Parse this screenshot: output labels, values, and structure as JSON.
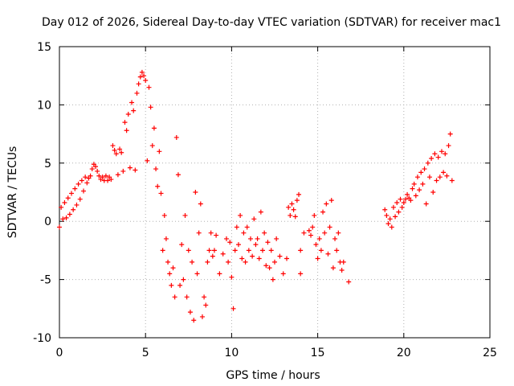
{
  "chart_data": {
    "type": "scatter",
    "title": "Day 012 of 2026, Sidereal Day-to-day VTEC variation (SDTVAR) for receiver mac1",
    "xlabel": "GPS time / hours",
    "ylabel": "SDTVAR / TECUs",
    "xlim": [
      0,
      25
    ],
    "ylim": [
      -10,
      15
    ],
    "xticks": [
      "0",
      "5",
      "10",
      "15",
      "20",
      "25"
    ],
    "yticks": [
      "-10",
      "-5",
      "0",
      "5",
      "10",
      "15"
    ],
    "grid": true,
    "marker": "+",
    "color": "#ff0000",
    "series": [
      {
        "name": "SDTVAR",
        "points": [
          [
            0.0,
            -0.5
          ],
          [
            0.1,
            1.2
          ],
          [
            0.2,
            0.2
          ],
          [
            0.3,
            1.6
          ],
          [
            0.4,
            0.3
          ],
          [
            0.5,
            2.0
          ],
          [
            0.6,
            0.6
          ],
          [
            0.7,
            2.4
          ],
          [
            0.8,
            1.0
          ],
          [
            0.9,
            2.8
          ],
          [
            1.0,
            1.4
          ],
          [
            1.1,
            3.2
          ],
          [
            1.2,
            1.9
          ],
          [
            1.3,
            3.5
          ],
          [
            1.4,
            2.6
          ],
          [
            1.5,
            3.8
          ],
          [
            1.6,
            3.3
          ],
          [
            1.7,
            3.7
          ],
          [
            1.8,
            3.9
          ],
          [
            1.9,
            4.5
          ],
          [
            2.0,
            4.9
          ],
          [
            2.1,
            4.7
          ],
          [
            2.2,
            4.3
          ],
          [
            2.3,
            3.9
          ],
          [
            2.4,
            3.6
          ],
          [
            2.5,
            3.8
          ],
          [
            2.6,
            3.5
          ],
          [
            2.7,
            3.9
          ],
          [
            2.8,
            3.5
          ],
          [
            2.9,
            3.8
          ],
          [
            3.0,
            3.6
          ],
          [
            3.1,
            6.5
          ],
          [
            3.2,
            6.1
          ],
          [
            3.3,
            5.8
          ],
          [
            3.4,
            4.0
          ],
          [
            3.5,
            6.2
          ],
          [
            3.6,
            5.9
          ],
          [
            3.7,
            4.3
          ],
          [
            3.8,
            8.5
          ],
          [
            3.9,
            7.8
          ],
          [
            4.0,
            9.2
          ],
          [
            4.1,
            4.6
          ],
          [
            4.2,
            10.2
          ],
          [
            4.3,
            9.5
          ],
          [
            4.4,
            4.4
          ],
          [
            4.5,
            11.0
          ],
          [
            4.6,
            11.8
          ],
          [
            4.7,
            12.4
          ],
          [
            4.8,
            12.8
          ],
          [
            4.9,
            12.5
          ],
          [
            5.0,
            12.1
          ],
          [
            5.1,
            5.2
          ],
          [
            5.2,
            11.5
          ],
          [
            5.3,
            9.8
          ],
          [
            5.4,
            6.5
          ],
          [
            5.5,
            8.0
          ],
          [
            5.6,
            4.5
          ],
          [
            5.7,
            3.0
          ],
          [
            5.8,
            6.0
          ],
          [
            5.9,
            2.4
          ],
          [
            6.0,
            -2.5
          ],
          [
            6.1,
            0.5
          ],
          [
            6.2,
            -1.5
          ],
          [
            6.3,
            -3.5
          ],
          [
            6.4,
            -4.5
          ],
          [
            6.5,
            -5.5
          ],
          [
            6.6,
            -4.0
          ],
          [
            6.7,
            -6.5
          ],
          [
            6.8,
            7.2
          ],
          [
            6.9,
            4.0
          ],
          [
            7.0,
            -5.5
          ],
          [
            7.1,
            -2.0
          ],
          [
            7.2,
            -5.0
          ],
          [
            7.3,
            0.5
          ],
          [
            7.4,
            -6.5
          ],
          [
            7.5,
            -2.5
          ],
          [
            7.6,
            -7.8
          ],
          [
            7.7,
            -3.5
          ],
          [
            7.8,
            -8.5
          ],
          [
            7.9,
            2.5
          ],
          [
            8.0,
            -4.5
          ],
          [
            8.1,
            -1.0
          ],
          [
            8.2,
            1.5
          ],
          [
            8.3,
            -8.2
          ],
          [
            8.4,
            -6.5
          ],
          [
            8.5,
            -7.2
          ],
          [
            8.6,
            -3.5
          ],
          [
            8.7,
            -2.5
          ],
          [
            8.8,
            -1.0
          ],
          [
            8.9,
            -3.0
          ],
          [
            9.0,
            -2.5
          ],
          [
            9.1,
            -1.2
          ],
          [
            9.3,
            -4.5
          ],
          [
            9.5,
            -2.8
          ],
          [
            9.7,
            -1.5
          ],
          [
            9.8,
            -3.5
          ],
          [
            9.9,
            -1.8
          ],
          [
            10.0,
            -4.8
          ],
          [
            10.1,
            -7.5
          ],
          [
            10.2,
            -2.5
          ],
          [
            10.3,
            -0.5
          ],
          [
            10.4,
            -2.0
          ],
          [
            10.5,
            0.5
          ],
          [
            10.6,
            -3.2
          ],
          [
            10.7,
            -1.0
          ],
          [
            10.8,
            -3.5
          ],
          [
            10.9,
            -0.5
          ],
          [
            11.0,
            -2.5
          ],
          [
            11.1,
            -1.5
          ],
          [
            11.2,
            -3.0
          ],
          [
            11.3,
            0.2
          ],
          [
            11.4,
            -2.0
          ],
          [
            11.5,
            -1.5
          ],
          [
            11.6,
            -3.2
          ],
          [
            11.7,
            0.8
          ],
          [
            11.8,
            -2.5
          ],
          [
            11.9,
            -1.0
          ],
          [
            12.0,
            -3.8
          ],
          [
            12.1,
            -1.8
          ],
          [
            12.2,
            -4.0
          ],
          [
            12.3,
            -2.5
          ],
          [
            12.4,
            -5.0
          ],
          [
            12.5,
            -3.5
          ],
          [
            12.6,
            -1.5
          ],
          [
            12.8,
            -3.0
          ],
          [
            13.0,
            -4.5
          ],
          [
            13.2,
            -3.2
          ],
          [
            13.3,
            1.2
          ],
          [
            13.4,
            0.5
          ],
          [
            13.5,
            1.5
          ],
          [
            13.6,
            1.0
          ],
          [
            13.7,
            0.4
          ],
          [
            13.8,
            1.8
          ],
          [
            13.9,
            2.3
          ],
          [
            14.0,
            -4.5
          ],
          [
            14.0,
            -2.5
          ],
          [
            14.2,
            -1.0
          ],
          [
            14.5,
            -0.8
          ],
          [
            14.6,
            -1.2
          ],
          [
            14.7,
            -0.5
          ],
          [
            14.8,
            0.5
          ],
          [
            14.9,
            -2.0
          ],
          [
            15.0,
            -3.2
          ],
          [
            15.1,
            -1.5
          ],
          [
            15.2,
            -2.5
          ],
          [
            15.3,
            0.8
          ],
          [
            15.4,
            -1.0
          ],
          [
            15.5,
            1.5
          ],
          [
            15.6,
            -2.8
          ],
          [
            15.7,
            -0.5
          ],
          [
            15.8,
            1.8
          ],
          [
            15.9,
            -4.0
          ],
          [
            16.0,
            -1.5
          ],
          [
            16.1,
            -2.5
          ],
          [
            16.2,
            -1.0
          ],
          [
            16.3,
            -3.5
          ],
          [
            16.4,
            -4.2
          ],
          [
            16.5,
            -3.5
          ],
          [
            16.8,
            -5.2
          ],
          [
            18.9,
            1.0
          ],
          [
            19.0,
            0.5
          ],
          [
            19.1,
            -0.2
          ],
          [
            19.2,
            0.2
          ],
          [
            19.3,
            -0.5
          ],
          [
            19.4,
            1.2
          ],
          [
            19.5,
            0.4
          ],
          [
            19.6,
            1.6
          ],
          [
            19.7,
            0.8
          ],
          [
            19.8,
            1.9
          ],
          [
            19.9,
            1.2
          ],
          [
            20.0,
            1.6
          ],
          [
            20.1,
            1.9
          ],
          [
            20.2,
            2.3
          ],
          [
            20.3,
            2.0
          ],
          [
            20.4,
            1.8
          ],
          [
            20.5,
            2.8
          ],
          [
            20.6,
            3.2
          ],
          [
            20.7,
            2.2
          ],
          [
            20.8,
            3.8
          ],
          [
            20.9,
            2.7
          ],
          [
            21.0,
            4.2
          ],
          [
            21.1,
            3.2
          ],
          [
            21.2,
            4.5
          ],
          [
            21.3,
            1.5
          ],
          [
            21.4,
            5.0
          ],
          [
            21.5,
            3.8
          ],
          [
            21.6,
            5.4
          ],
          [
            21.7,
            2.5
          ],
          [
            21.8,
            5.8
          ],
          [
            21.9,
            3.5
          ],
          [
            22.0,
            5.5
          ],
          [
            22.1,
            3.8
          ],
          [
            22.2,
            6.0
          ],
          [
            22.3,
            4.2
          ],
          [
            22.4,
            5.8
          ],
          [
            22.5,
            3.9
          ],
          [
            22.6,
            6.5
          ],
          [
            22.7,
            7.5
          ],
          [
            22.8,
            3.5
          ]
        ]
      }
    ]
  }
}
